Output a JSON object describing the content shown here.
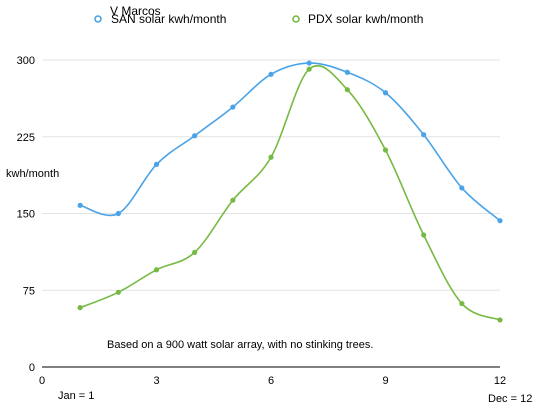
{
  "chart_data": {
    "type": "line",
    "title": "V Marcos",
    "xlabel": "",
    "ylabel": "kwh/month",
    "xlim": [
      0,
      12
    ],
    "ylim": [
      0,
      300
    ],
    "x_ticks": [
      "0",
      "3",
      "6",
      "9",
      "12"
    ],
    "y_ticks": [
      "0",
      "75",
      "150",
      "225",
      "300"
    ],
    "x_start_note": "Jan = 1",
    "x_end_note": "Dec = 12",
    "grid": true,
    "legend_position": "top",
    "annotation": "Based on a 900 watt solar array, with no stinking trees.",
    "x": [
      1,
      2,
      3,
      4,
      5,
      6,
      7,
      8,
      9,
      10,
      11,
      12
    ],
    "series": [
      {
        "name": "SAN solar kwh/month",
        "color": "#4aa3e8",
        "values": [
          158,
          150,
          198,
          226,
          254,
          286,
          297,
          288,
          268,
          227,
          175,
          143
        ]
      },
      {
        "name": "PDX solar kwh/month",
        "color": "#76b943",
        "values": [
          58,
          73,
          95,
          112,
          163,
          205,
          291,
          271,
          212,
          129,
          62,
          46
        ]
      }
    ]
  }
}
